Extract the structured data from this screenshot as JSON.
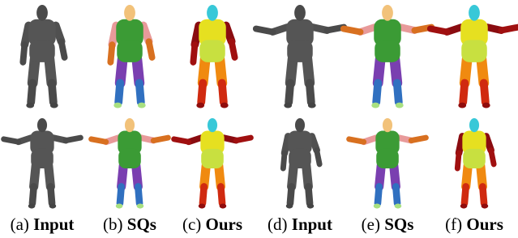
{
  "captions": [
    {
      "label": "(a)",
      "name": "Input"
    },
    {
      "label": "(b)",
      "name": "SQs"
    },
    {
      "label": "(c)",
      "name": "Ours"
    },
    {
      "label": "(d)",
      "name": "Input"
    },
    {
      "label": "(e)",
      "name": "SQs"
    },
    {
      "label": "(f)",
      "name": "Ours"
    }
  ]
}
